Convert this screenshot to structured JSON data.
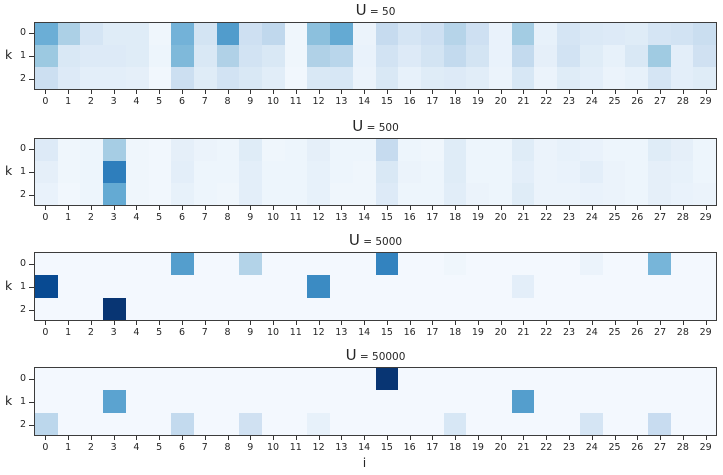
{
  "chart_data": {
    "type": "heatmap",
    "layout": "4 stacked panels, shared axes",
    "colormap": "Blues",
    "value_range": [
      0,
      1
    ],
    "xlabel": "i",
    "ylabel": "k",
    "x_tick_labels": [
      "0",
      "1",
      "2",
      "3",
      "4",
      "5",
      "6",
      "7",
      "8",
      "9",
      "10",
      "11",
      "12",
      "13",
      "14",
      "15",
      "16",
      "17",
      "18",
      "19",
      "20",
      "21",
      "22",
      "23",
      "24",
      "25",
      "26",
      "27",
      "28",
      "29"
    ],
    "y_tick_labels": [
      "0",
      "1",
      "2"
    ],
    "panels": [
      {
        "title": "U = 50",
        "values": [
          [
            0.5,
            0.33,
            0.17,
            0.12,
            0.12,
            0.04,
            0.48,
            0.18,
            0.58,
            0.21,
            0.27,
            0.04,
            0.42,
            0.52,
            0.06,
            0.25,
            0.17,
            0.21,
            0.3,
            0.21,
            0.07,
            0.36,
            0.08,
            0.17,
            0.14,
            0.13,
            0.12,
            0.17,
            0.19,
            0.23
          ],
          [
            0.38,
            0.15,
            0.13,
            0.13,
            0.12,
            0.05,
            0.45,
            0.15,
            0.32,
            0.19,
            0.15,
            0.04,
            0.32,
            0.29,
            0.07,
            0.19,
            0.13,
            0.18,
            0.26,
            0.18,
            0.07,
            0.26,
            0.09,
            0.19,
            0.12,
            0.08,
            0.15,
            0.37,
            0.1,
            0.2
          ],
          [
            0.22,
            0.13,
            0.1,
            0.1,
            0.09,
            0.03,
            0.22,
            0.12,
            0.19,
            0.15,
            0.11,
            0.03,
            0.15,
            0.16,
            0.06,
            0.15,
            0.08,
            0.12,
            0.13,
            0.11,
            0.06,
            0.16,
            0.06,
            0.12,
            0.1,
            0.06,
            0.08,
            0.17,
            0.1,
            0.12
          ]
        ]
      },
      {
        "title": "U = 500",
        "values": [
          [
            0.13,
            0.04,
            0.05,
            0.35,
            0.04,
            0.03,
            0.09,
            0.06,
            0.05,
            0.12,
            0.04,
            0.05,
            0.09,
            0.05,
            0.05,
            0.25,
            0.05,
            0.04,
            0.12,
            0.05,
            0.05,
            0.12,
            0.06,
            0.08,
            0.07,
            0.05,
            0.05,
            0.12,
            0.09,
            0.05
          ],
          [
            0.09,
            0.04,
            0.05,
            0.7,
            0.04,
            0.03,
            0.1,
            0.05,
            0.05,
            0.1,
            0.05,
            0.05,
            0.08,
            0.05,
            0.04,
            0.15,
            0.06,
            0.05,
            0.12,
            0.05,
            0.05,
            0.1,
            0.06,
            0.07,
            0.1,
            0.06,
            0.05,
            0.09,
            0.08,
            0.05
          ],
          [
            0.07,
            0.03,
            0.05,
            0.52,
            0.04,
            0.03,
            0.08,
            0.05,
            0.04,
            0.1,
            0.05,
            0.05,
            0.08,
            0.04,
            0.04,
            0.13,
            0.05,
            0.05,
            0.11,
            0.06,
            0.05,
            0.12,
            0.06,
            0.06,
            0.07,
            0.06,
            0.05,
            0.09,
            0.07,
            0.06
          ]
        ]
      },
      {
        "title": "U = 5000",
        "values": [
          [
            0.02,
            0.02,
            0.02,
            0.02,
            0.02,
            0.02,
            0.57,
            0.02,
            0.02,
            0.31,
            0.02,
            0.02,
            0.02,
            0.02,
            0.02,
            0.68,
            0.02,
            0.02,
            0.04,
            0.02,
            0.02,
            0.02,
            0.02,
            0.02,
            0.06,
            0.02,
            0.02,
            0.47,
            0.02,
            0.02
          ],
          [
            0.9,
            0.02,
            0.02,
            0.02,
            0.02,
            0.02,
            0.02,
            0.02,
            0.02,
            0.02,
            0.02,
            0.02,
            0.65,
            0.02,
            0.02,
            0.02,
            0.02,
            0.02,
            0.02,
            0.02,
            0.02,
            0.1,
            0.02,
            0.02,
            0.02,
            0.02,
            0.02,
            0.02,
            0.02,
            0.02
          ],
          [
            0.02,
            0.02,
            0.02,
            0.98,
            0.02,
            0.02,
            0.02,
            0.02,
            0.02,
            0.02,
            0.02,
            0.02,
            0.02,
            0.02,
            0.02,
            0.02,
            0.02,
            0.02,
            0.02,
            0.02,
            0.02,
            0.02,
            0.02,
            0.02,
            0.02,
            0.02,
            0.02,
            0.02,
            0.02,
            0.02
          ]
        ]
      },
      {
        "title": "U = 50000",
        "values": [
          [
            0.02,
            0.02,
            0.02,
            0.02,
            0.02,
            0.02,
            0.02,
            0.02,
            0.02,
            0.02,
            0.02,
            0.02,
            0.02,
            0.02,
            0.02,
            0.98,
            0.02,
            0.02,
            0.02,
            0.02,
            0.02,
            0.02,
            0.02,
            0.02,
            0.02,
            0.02,
            0.02,
            0.02,
            0.02,
            0.02
          ],
          [
            0.02,
            0.02,
            0.02,
            0.55,
            0.02,
            0.02,
            0.02,
            0.02,
            0.02,
            0.02,
            0.02,
            0.02,
            0.02,
            0.02,
            0.02,
            0.02,
            0.02,
            0.02,
            0.02,
            0.02,
            0.02,
            0.57,
            0.02,
            0.02,
            0.02,
            0.02,
            0.02,
            0.02,
            0.02,
            0.02
          ],
          [
            0.28,
            0.02,
            0.02,
            0.02,
            0.02,
            0.02,
            0.26,
            0.02,
            0.02,
            0.2,
            0.02,
            0.02,
            0.08,
            0.02,
            0.02,
            0.02,
            0.02,
            0.02,
            0.16,
            0.02,
            0.02,
            0.02,
            0.02,
            0.02,
            0.17,
            0.02,
            0.02,
            0.24,
            0.02,
            0.02
          ]
        ]
      }
    ]
  }
}
